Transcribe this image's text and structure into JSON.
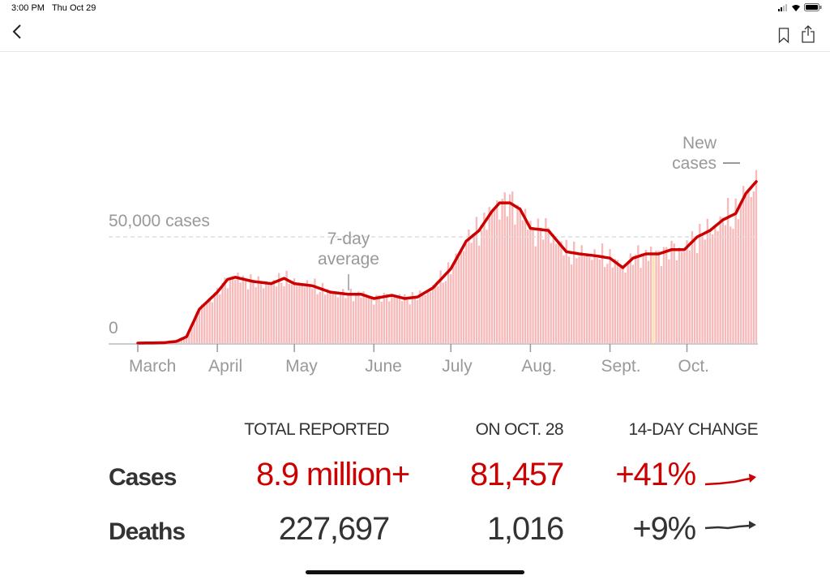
{
  "status_bar": {
    "time": "3:00 PM",
    "date": "Thu Oct 29"
  },
  "nav": {
    "back_icon": "chevron-left-icon",
    "bookmark_icon": "bookmark-icon",
    "share_icon": "share-icon"
  },
  "colors": {
    "accent": "#cc0000",
    "bar": "#f7baba",
    "highlight": "#fde2a8",
    "axis_text": "#999999",
    "text": "#333333"
  },
  "chart_data": {
    "type": "bar",
    "title": "",
    "xlabel": "",
    "ylabel": "New cases",
    "ylim": [
      0,
      85000
    ],
    "y_ticks": [
      {
        "value": 0,
        "label": "0"
      },
      {
        "value": 50000,
        "label": "50,000 cases"
      }
    ],
    "x_ticks": [
      {
        "day": 0,
        "label": "March"
      },
      {
        "day": 31,
        "label": "April"
      },
      {
        "day": 61,
        "label": "May"
      },
      {
        "day": 92,
        "label": "June"
      },
      {
        "day": 122,
        "label": "July"
      },
      {
        "day": 153,
        "label": "Aug."
      },
      {
        "day": 184,
        "label": "Sept."
      },
      {
        "day": 214,
        "label": "Oct."
      }
    ],
    "x_range_days": [
      0,
      241
    ],
    "x_origin_date": "March 1",
    "highlight_day": 201,
    "annotations": {
      "average_label": [
        "7-day",
        "average"
      ],
      "average_day": 82,
      "bars_label": [
        "New",
        "cases"
      ]
    },
    "series": [
      {
        "name": "7-day average",
        "type": "line",
        "points": [
          [
            0,
            0
          ],
          [
            10,
            200
          ],
          [
            15,
            800
          ],
          [
            19,
            3000
          ],
          [
            24,
            16000
          ],
          [
            31,
            24000
          ],
          [
            35,
            30000
          ],
          [
            38,
            31000
          ],
          [
            45,
            29000
          ],
          [
            52,
            28000
          ],
          [
            57,
            30500
          ],
          [
            61,
            28000
          ],
          [
            68,
            27000
          ],
          [
            75,
            24000
          ],
          [
            82,
            23000
          ],
          [
            87,
            23000
          ],
          [
            92,
            21000
          ],
          [
            99,
            22500
          ],
          [
            104,
            21000
          ],
          [
            109,
            21700
          ],
          [
            115,
            26000
          ],
          [
            122,
            35000
          ],
          [
            128,
            48000
          ],
          [
            133,
            53000
          ],
          [
            138,
            62000
          ],
          [
            141,
            66000
          ],
          [
            145,
            66000
          ],
          [
            149,
            63000
          ],
          [
            153,
            54000
          ],
          [
            160,
            53000
          ],
          [
            167,
            43000
          ],
          [
            172,
            42000
          ],
          [
            179,
            41000
          ],
          [
            184,
            40000
          ],
          [
            189,
            35500
          ],
          [
            193,
            40000
          ],
          [
            198,
            42000
          ],
          [
            203,
            42000
          ],
          [
            208,
            44000
          ],
          [
            213,
            44000
          ],
          [
            218,
            50000
          ],
          [
            223,
            53000
          ],
          [
            228,
            58000
          ],
          [
            233,
            61000
          ],
          [
            237,
            70500
          ],
          [
            241,
            76000
          ]
        ]
      },
      {
        "name": "New cases",
        "type": "bar",
        "note": "daily values fluctuate around the 7-day average; last day 81,457"
      }
    ]
  },
  "summary": {
    "headers": [
      "TOTAL REPORTED",
      "ON OCT. 28",
      "14-DAY CHANGE"
    ],
    "rows": [
      {
        "label": "Cases",
        "total": "8.9 million+",
        "on_date": "81,457",
        "change": "+41%",
        "trend": [
          0,
          1,
          1.5,
          3,
          4,
          7,
          10
        ]
      },
      {
        "label": "Deaths",
        "total": "227,697",
        "on_date": "1,016",
        "change": "+9%",
        "trend": [
          0,
          1,
          0.5,
          1,
          2,
          1.5,
          2.5
        ]
      }
    ]
  }
}
